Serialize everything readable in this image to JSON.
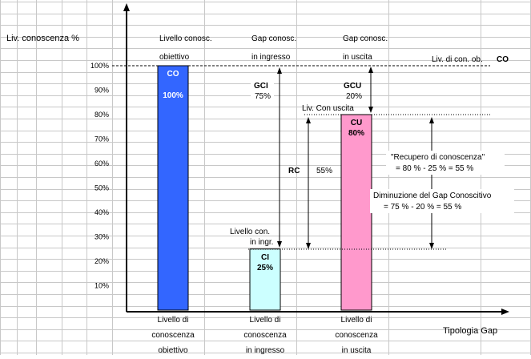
{
  "chart_data": {
    "type": "bar",
    "ylabel": "Liv. conoscenza %",
    "xlabel": "Tipologia Gap",
    "ylim": [
      0,
      100
    ],
    "yticks": [
      "10%",
      "20%",
      "30%",
      "40%",
      "50%",
      "60%",
      "70%",
      "80%",
      "90%",
      "100%"
    ],
    "grid": true,
    "bars": [
      {
        "code": "CO",
        "value": 100,
        "value_label": "100%",
        "color": "#3366ff",
        "label": [
          "Livello di",
          "conoscenza",
          "obiettivo"
        ]
      },
      {
        "code": "CI",
        "value": 25,
        "value_label": "25%",
        "color": "#ccffff",
        "label": [
          "Livello di",
          "conoscenza",
          "in ingresso"
        ]
      },
      {
        "code": "CU",
        "value": 80,
        "value_label": "80%",
        "color": "#ff99cc",
        "label": [
          "Livello di",
          "conoscenza",
          "in uscita"
        ]
      }
    ],
    "column_headers": [
      [
        "Livello conosc.",
        "obiettivo"
      ],
      [
        "Gap conosc.",
        "in ingresso"
      ],
      [
        "Gap conosc.",
        "in uscita"
      ]
    ],
    "annotations": {
      "target_line": {
        "label": "Liv. di con. ob.",
        "code": "CO"
      },
      "gci": {
        "code": "GCI",
        "value": "75%"
      },
      "gcu": {
        "code": "GCU",
        "value": "20%"
      },
      "rc": {
        "code": "RC",
        "value": "55%"
      },
      "exit_level": "Liv. Con uscita",
      "entry_level": [
        "Livello con.",
        "in ingr."
      ],
      "recovery": [
        "\"Recupero di conoscenza\"",
        "= 80 % - 25 % = 55 %"
      ],
      "decrease": [
        "Diminuzione del Gap Conoscitivo",
        "= 75 % - 20 % = 55 %"
      ]
    }
  }
}
